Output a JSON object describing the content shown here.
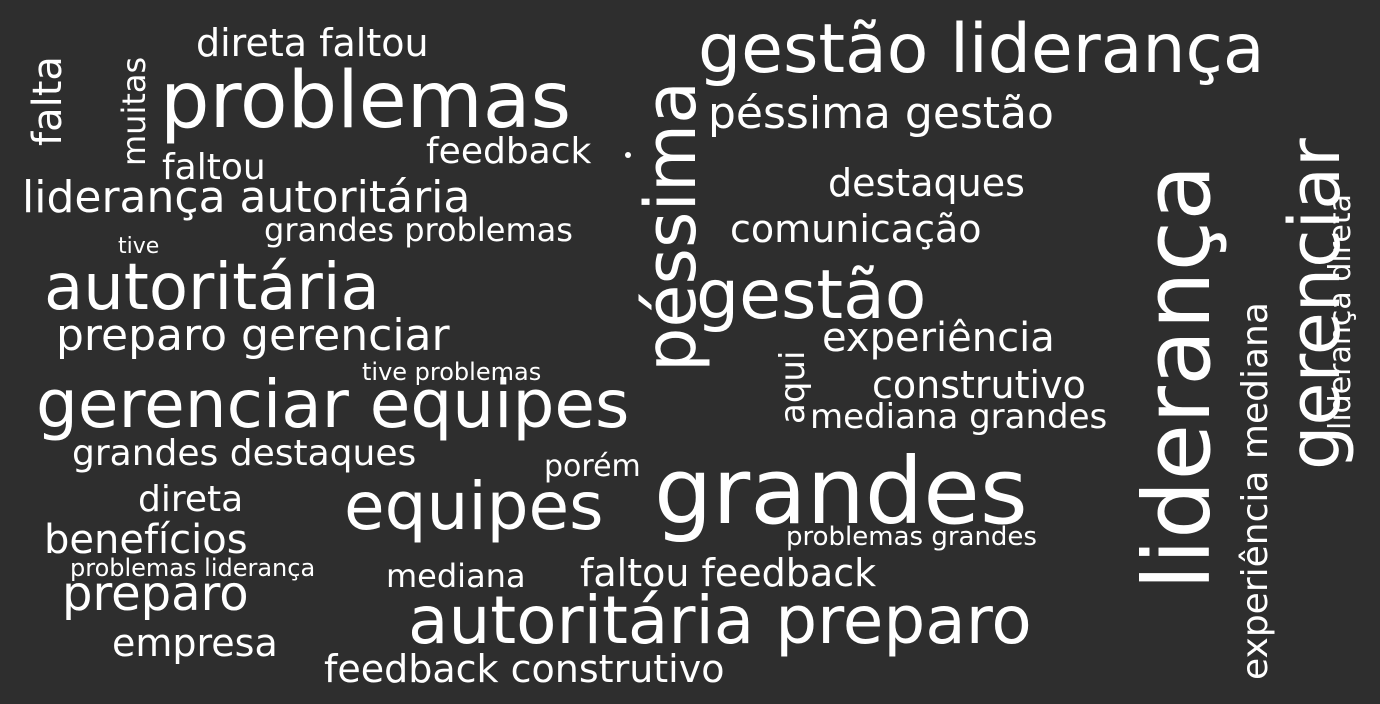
{
  "background": "#2e2e2e",
  "text_color": "#ffffff",
  "words": {
    "direta_faltou": "direta faltou",
    "problemas": "problemas",
    "gestao_lideranca": "gestão liderança",
    "pessima_gestao": "péssima gestão",
    "feedback": "feedback",
    "faltou": "faltou",
    "lideranca_autoritaria": "liderança autoritária",
    "destaques": "destaques",
    "grandes_problemas": "grandes problemas",
    "comunicacao": "comunicação",
    "tive": "tive",
    "autoritaria": "autoritária",
    "gestao": "gestão",
    "preparo_gerenciar": "preparo gerenciar",
    "experiencia": "experiência",
    "tive_problemas": "tive problemas",
    "construtivo": "construtivo",
    "gerenciar_equipes": "gerenciar equipes",
    "mediana_grandes": "mediana grandes",
    "grandes_destaques": "grandes destaques",
    "porem": "porém",
    "grandes": "grandes",
    "direta": "direta",
    "equipes": "equipes",
    "beneficios": "benefícios",
    "problemas_grandes": "problemas grandes",
    "problemas_lideranca": "problemas liderança",
    "mediana": "mediana",
    "faltou_feedback": "faltou feedback",
    "preparo": "preparo",
    "autoritaria_preparo": "autoritária preparo",
    "empresa": "empresa",
    "feedback_construtivo": "feedback construtivo",
    "falta": "falta",
    "muitas": "muitas",
    "pessima": "péssima",
    "aqui": "aqui",
    "lideranca": "liderança",
    "experiencia_mediana": "experiência mediana",
    "gerenciar": "gerenciar",
    "lideranca_direta": "liderança direta"
  }
}
